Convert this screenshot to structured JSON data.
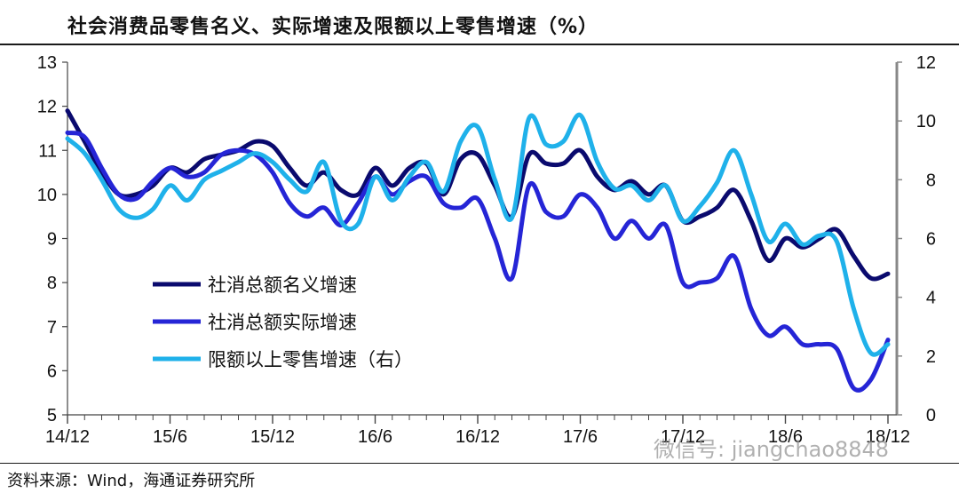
{
  "title": "社会消费品零售名义、实际增速及限额以上零售增速（%）",
  "source": "资料来源：Wind，海通证券研究所",
  "watermark": "微信号: jiangchao8848",
  "chart_data": {
    "type": "line",
    "x_tick_labels": [
      "14/12",
      "15/6",
      "15/12",
      "16/6",
      "16/12",
      "17/6",
      "17/12",
      "18/6",
      "18/12"
    ],
    "x": [
      "14/12",
      "15/1",
      "15/2",
      "15/3",
      "15/4",
      "15/5",
      "15/6",
      "15/7",
      "15/8",
      "15/9",
      "15/10",
      "15/11",
      "15/12",
      "16/1",
      "16/2",
      "16/3",
      "16/4",
      "16/5",
      "16/6",
      "16/7",
      "16/8",
      "16/9",
      "16/10",
      "16/11",
      "16/12",
      "17/1",
      "17/2",
      "17/3",
      "17/4",
      "17/5",
      "17/6",
      "17/7",
      "17/8",
      "17/9",
      "17/10",
      "17/11",
      "17/12",
      "18/1",
      "18/2",
      "18/3",
      "18/4",
      "18/5",
      "18/6",
      "18/7",
      "18/8",
      "18/9",
      "18/10",
      "18/11",
      "18/12"
    ],
    "left_axis": {
      "ylim": [
        5,
        13
      ],
      "ticks": [
        5,
        6,
        7,
        8,
        9,
        10,
        11,
        12,
        13
      ]
    },
    "right_axis": {
      "ylim": [
        0,
        12
      ],
      "ticks": [
        0,
        2,
        4,
        6,
        8,
        10,
        12
      ]
    },
    "legend_position": "center-left",
    "series": [
      {
        "name": "社消总额名义增速",
        "axis": "left",
        "color": "#0a0a6e",
        "values": [
          11.9,
          11.2,
          10.5,
          10.0,
          10.0,
          10.2,
          10.6,
          10.5,
          10.8,
          10.9,
          11.0,
          11.2,
          11.1,
          10.6,
          10.2,
          10.5,
          10.1,
          10.0,
          10.6,
          10.2,
          10.6,
          10.7,
          10.0,
          10.8,
          10.9,
          10.2,
          9.5,
          10.9,
          10.7,
          10.7,
          11.0,
          10.4,
          10.1,
          10.3,
          10.0,
          10.2,
          9.4,
          9.5,
          9.7,
          10.1,
          9.4,
          8.5,
          9.0,
          8.8,
          9.0,
          9.2,
          8.6,
          8.1,
          8.2
        ]
      },
      {
        "name": "社消总额实际增速",
        "axis": "left",
        "color": "#2525d6",
        "values": [
          11.4,
          11.3,
          10.6,
          10.0,
          9.9,
          10.3,
          10.6,
          10.4,
          10.5,
          10.9,
          11.0,
          10.9,
          10.5,
          9.8,
          9.5,
          9.7,
          9.3,
          9.8,
          10.4,
          10.0,
          10.3,
          10.4,
          9.8,
          9.7,
          9.9,
          9.0,
          8.1,
          10.2,
          9.6,
          9.5,
          10.0,
          9.7,
          9.0,
          9.4,
          9.0,
          9.3,
          8.0,
          8.0,
          8.1,
          8.6,
          7.4,
          6.8,
          7.0,
          6.6,
          6.6,
          6.5,
          5.6,
          5.8,
          6.7
        ]
      },
      {
        "name": "限额以上零售增速（右）",
        "axis": "right",
        "color": "#1fb1ea",
        "values": [
          9.4,
          8.9,
          8.0,
          7.0,
          6.7,
          7.0,
          7.8,
          7.3,
          8.0,
          8.3,
          8.6,
          8.9,
          8.6,
          8.0,
          7.6,
          8.6,
          6.6,
          6.5,
          8.1,
          7.3,
          8.1,
          8.6,
          7.6,
          9.3,
          9.8,
          8.0,
          6.7,
          10.1,
          9.2,
          9.3,
          10.2,
          8.6,
          7.7,
          7.8,
          7.3,
          7.8,
          6.6,
          7.1,
          7.9,
          9.0,
          7.5,
          5.9,
          6.5,
          5.8,
          6.1,
          5.9,
          3.6,
          2.1,
          2.4
        ]
      }
    ]
  }
}
